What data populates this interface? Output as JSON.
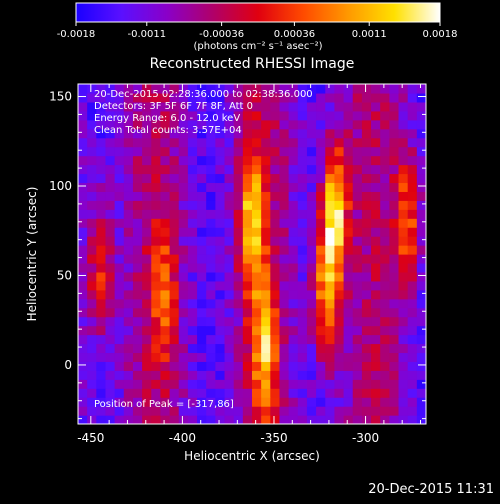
{
  "colorbar": {
    "min": -0.0018,
    "max": 0.0018,
    "tick_labels": [
      "-0.0018",
      "-0.0011",
      "-0.00036",
      "0.00036",
      "0.0011",
      "0.0018"
    ],
    "units_label": "(photons cm⁻² s⁻¹ asec⁻²)",
    "colors": [
      "#1a00ff",
      "#5a10ff",
      "#8a00c8",
      "#b0006a",
      "#e00010",
      "#ff4b00",
      "#ff9a00",
      "#ffe000",
      "#ffffff"
    ]
  },
  "chart_data": {
    "type": "heatmap",
    "title": "Reconstructed RHESSI Image",
    "xlabel": "Heliocentric X (arcsec)",
    "ylabel": "Heliocentric Y (arcsec)",
    "xlim": [
      -457,
      -267
    ],
    "ylim": [
      -33,
      157
    ],
    "x_ticks": [
      -450,
      -400,
      -350,
      -300
    ],
    "y_ticks": [
      0,
      50,
      100,
      150
    ],
    "x_tick_labels": [
      "-450",
      "-400",
      "-350",
      "-300"
    ],
    "y_tick_labels": [
      "0",
      "50",
      "100",
      "150"
    ],
    "info_lines": [
      "20-Dec-2015 02:28:36.000 to 02:38:36.000",
      "Detectors: 3F 5F 6F 7F 8F, Att 0",
      "Energy Range: 6.0 - 12.0 keV",
      "Clean    Total counts: 3.57E+04"
    ],
    "peak_label": "Position of Peak = [-317,86]",
    "peak_position": [
      -317,
      86
    ],
    "ridges": [
      {
        "x": -445,
        "y": 55,
        "amplitude": 0.001
      },
      {
        "x": -410,
        "y": 40,
        "amplitude": 0.0008
      },
      {
        "x": -362,
        "y": 80,
        "amplitude": 0.0014
      },
      {
        "x": -355,
        "y": 10,
        "amplitude": 0.0012
      },
      {
        "x": -317,
        "y": 86,
        "amplitude": 0.0018
      },
      {
        "x": -322,
        "y": 40,
        "amplitude": 0.0013
      },
      {
        "x": -277,
        "y": 80,
        "amplitude": 0.0011
      }
    ]
  },
  "footer": {
    "timestamp": "20-Dec-2015 11:31"
  }
}
